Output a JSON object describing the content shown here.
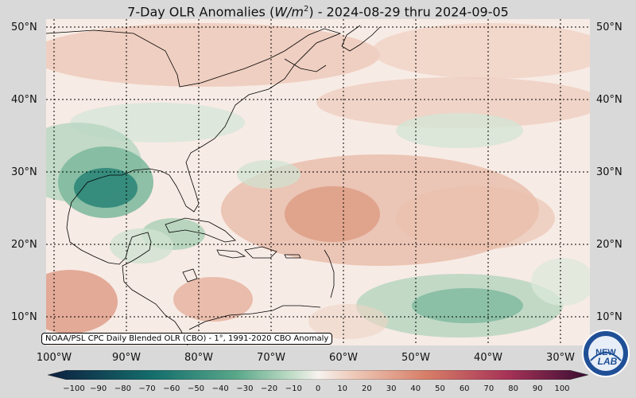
{
  "title": {
    "prefix": "7-Day OLR Anomalies (",
    "unit_base": "W/m",
    "unit_exp": "2",
    "suffix": ") - 2024-08-29 thru 2024-09-05"
  },
  "lat_labels": [
    "50°N",
    "40°N",
    "30°N",
    "20°N",
    "10°N"
  ],
  "lon_labels": [
    "100°W",
    "90°W",
    "80°W",
    "70°W",
    "60°W",
    "50°W",
    "40°W",
    "30°W"
  ],
  "source_text": "NOAA/PSL CPC Daily Blended OLR (CBO) - 1°, 1991-2020 CBO Anomaly",
  "colorbar": {
    "ticks": [
      "−100",
      "−90",
      "−80",
      "−70",
      "−60",
      "−50",
      "−40",
      "−30",
      "−20",
      "−10",
      "0",
      "10",
      "20",
      "30",
      "40",
      "50",
      "60",
      "70",
      "80",
      "90",
      "100"
    ],
    "colors": {
      "min": "#0d1f3f",
      "neg_strong": "#15706d",
      "neg_mid": "#5aa88a",
      "neg_light": "#bfdcc6",
      "zero": "#f6f2ee",
      "pos_light": "#edc7b6",
      "pos_mid": "#d77e67",
      "pos_strong": "#a73357",
      "max": "#3a0d33"
    }
  },
  "logo": {
    "text_top": "NEW",
    "text_bottom": "LAB"
  }
}
